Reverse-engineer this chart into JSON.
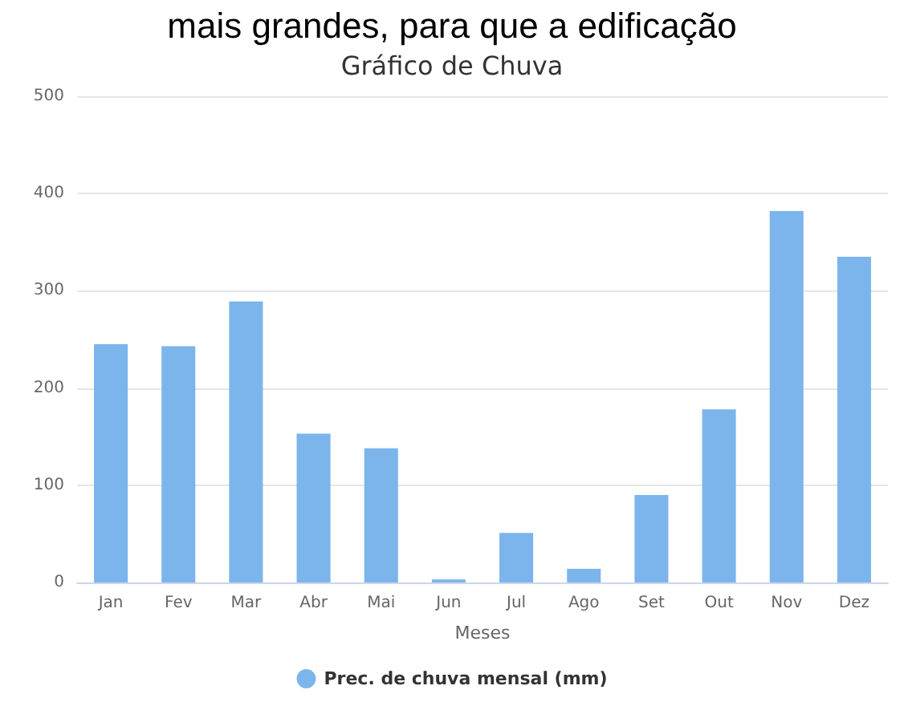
{
  "chart_data": {
    "type": "bar",
    "title": "Gráfico de Chuva",
    "xlabel": "Meses",
    "annotations": [
      "mais grandes, para que a edificação"
    ],
    "categories": [
      "Jan",
      "Fev",
      "Mar",
      "Abr",
      "Mai",
      "Jun",
      "Jul",
      "Ago",
      "Set",
      "Out",
      "Nov",
      "Dez"
    ],
    "series": [
      {
        "name": "Prec. de chuva mensal (mm)",
        "color": "#7cb5ec",
        "values": [
          245,
          243,
          289,
          153,
          138,
          3,
          51,
          14,
          90,
          178,
          382,
          335
        ]
      }
    ],
    "ylim": [
      0,
      500
    ],
    "yticks": [
      0,
      100,
      200,
      300,
      400,
      500
    ],
    "grid": "y",
    "legend": "bottom"
  }
}
